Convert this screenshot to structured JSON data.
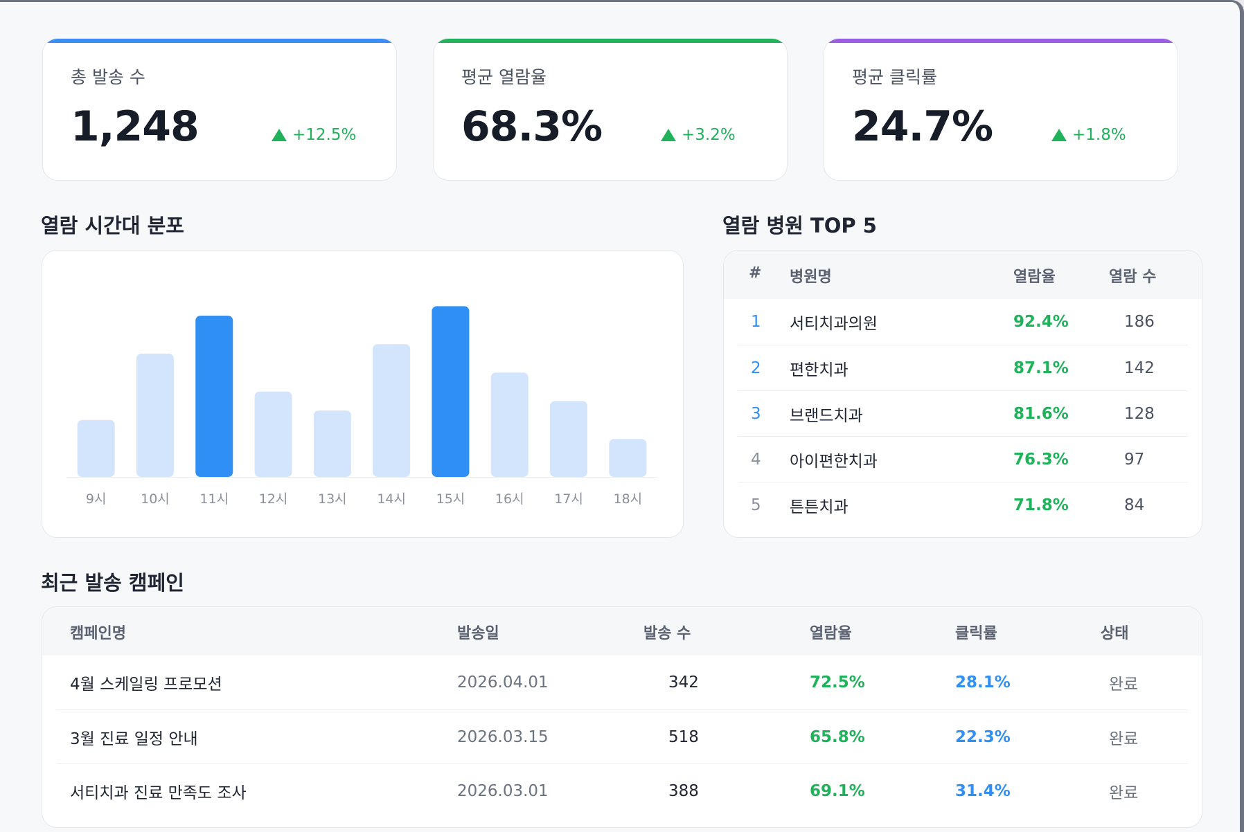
{
  "kpis": [
    {
      "label": "총 발송 수",
      "value": "1,248",
      "delta": "+12.5%",
      "color": "#3b8ef3"
    },
    {
      "label": "평균 열람율",
      "value": "68.3%",
      "delta": "+3.2%",
      "color": "#22b35c"
    },
    {
      "label": "평균 클릭률",
      "value": "24.7%",
      "delta": "+1.8%",
      "color": "#9b5de5"
    }
  ],
  "chart_section": {
    "title": "열람 시간대 분포"
  },
  "chart_data": {
    "type": "bar",
    "categories": [
      "9시",
      "10시",
      "11시",
      "12시",
      "13시",
      "14시",
      "15시",
      "16시",
      "17시",
      "18시"
    ],
    "values": [
      30,
      65,
      85,
      45,
      35,
      70,
      90,
      55,
      40,
      20
    ],
    "highlight": [
      "11시",
      "15시"
    ],
    "colors": {
      "normal": "#d3e5fc",
      "highlight": "#2f8ff5"
    },
    "grid": false
  },
  "ranking": {
    "title": "열람 병원 TOP 5",
    "headers": {
      "rank": "#",
      "name": "병원명",
      "rate": "열람율",
      "count": "열람 수"
    },
    "rows": [
      {
        "rank": "1",
        "name": "서티치과의원",
        "rate": "92.4%",
        "count": "186"
      },
      {
        "rank": "2",
        "name": "편한치과",
        "rate": "87.1%",
        "count": "142"
      },
      {
        "rank": "3",
        "name": "브랜드치과",
        "rate": "81.6%",
        "count": "128"
      },
      {
        "rank": "4",
        "name": "아이편한치과",
        "rate": "76.3%",
        "count": "97"
      },
      {
        "rank": "5",
        "name": "튼튼치과",
        "rate": "71.8%",
        "count": "84"
      }
    ]
  },
  "campaigns": {
    "title": "최근 발송 캠페인",
    "headers": {
      "name": "캠페인명",
      "date": "발송일",
      "sent": "발송 수",
      "open": "열람율",
      "click": "클릭률",
      "status": "상태"
    },
    "rows": [
      {
        "name": "4월 스케일링 프로모션",
        "date": "2026.04.01",
        "sent": "342",
        "open": "72.5%",
        "click": "28.1%",
        "status": "완료"
      },
      {
        "name": "3월 진료 일정 안내",
        "date": "2026.03.15",
        "sent": "518",
        "open": "65.8%",
        "click": "22.3%",
        "status": "완료"
      },
      {
        "name": "서티치과 진료 만족도 조사",
        "date": "2026.03.01",
        "sent": "388",
        "open": "69.1%",
        "click": "31.4%",
        "status": "완료"
      }
    ]
  },
  "colors": {
    "green": "#1fb25a",
    "blue": "#2f8ff5",
    "gray": "#6b7280"
  }
}
